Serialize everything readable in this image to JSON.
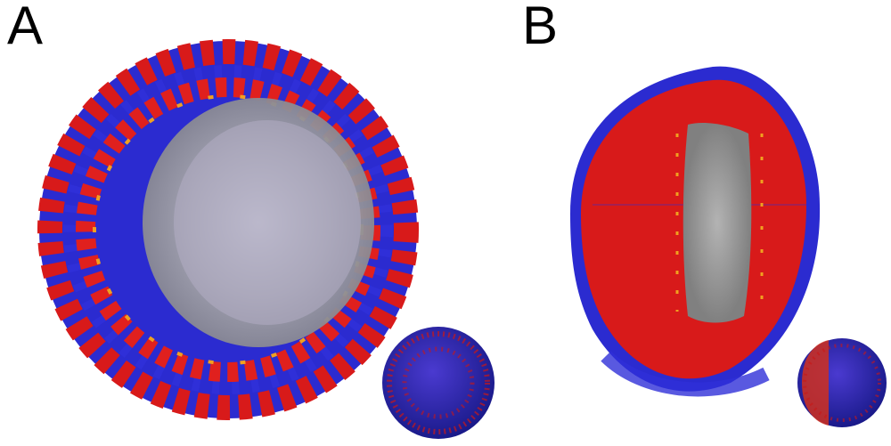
{
  "panels": [
    {
      "label": "A"
    },
    {
      "label": "B"
    }
  ],
  "colors": {
    "headgroup": "#2a2ad6",
    "tail": "#e0141e",
    "cholesterol": "#f0a020",
    "core": "#9a9a9a",
    "background": "#ffffff"
  }
}
